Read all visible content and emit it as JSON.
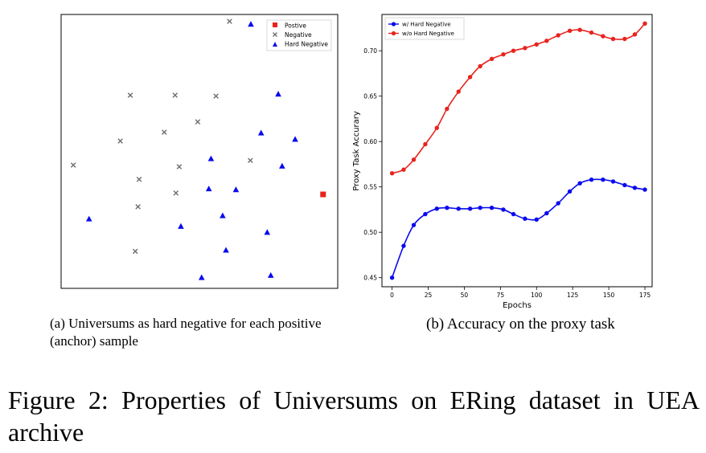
{
  "figure": {
    "caption": "Figure 2: Properties of Universums on ERing dataset in UEA archive"
  },
  "panel_a": {
    "caption": "(a) Universums as hard negative for each positive (anchor) sample",
    "legend": [
      "Postive",
      "Negative",
      "Hard Negative"
    ],
    "colors": {
      "positive": "#e8231e",
      "negative": "#6e6e6e",
      "hard_negative": "#0a0aef"
    }
  },
  "panel_b": {
    "caption": "(b) Accuracy on the proxy task",
    "colors": {
      "hard": "#0a0aef",
      "nohard": "#e8231e"
    }
  },
  "chart_data": [
    {
      "type": "scatter",
      "title": "",
      "xlabel": "",
      "ylabel": "",
      "axes_ticks": false,
      "legend_position": "top-right",
      "xlim": [
        0,
        100
      ],
      "ylim": [
        0,
        100
      ],
      "series": [
        {
          "name": "Postive",
          "marker": "square",
          "points": [
            [
              94.7,
              34.3
            ]
          ]
        },
        {
          "name": "Negative",
          "marker": "x",
          "points": [
            [
              60.9,
              97.5
            ],
            [
              25.0,
              70.5
            ],
            [
              41.2,
              70.5
            ],
            [
              56.0,
              70.2
            ],
            [
              37.3,
              57.0
            ],
            [
              49.4,
              60.8
            ],
            [
              21.4,
              53.8
            ],
            [
              4.4,
              45.0
            ],
            [
              42.7,
              44.4
            ],
            [
              68.4,
              46.7
            ],
            [
              28.2,
              39.8
            ],
            [
              41.5,
              34.8
            ],
            [
              27.8,
              29.8
            ],
            [
              26.8,
              13.5
            ]
          ]
        },
        {
          "name": "Hard Negative",
          "marker": "triangle",
          "points": [
            [
              68.6,
              96.5
            ],
            [
              78.5,
              71.0
            ],
            [
              72.3,
              56.8
            ],
            [
              84.6,
              54.5
            ],
            [
              54.2,
              47.4
            ],
            [
              79.9,
              44.7
            ],
            [
              53.4,
              36.4
            ],
            [
              63.2,
              36.1
            ],
            [
              10.1,
              25.4
            ],
            [
              58.4,
              26.6
            ],
            [
              43.3,
              22.7
            ],
            [
              74.5,
              20.5
            ],
            [
              59.6,
              14.0
            ],
            [
              50.8,
              4.0
            ],
            [
              75.8,
              4.8
            ]
          ]
        }
      ]
    },
    {
      "type": "line",
      "title": "",
      "xlabel": "Epochs",
      "ylabel": "Proxy Task Accurary",
      "xlim": [
        -7,
        180
      ],
      "ylim": [
        0.44,
        0.74
      ],
      "xticks": [
        0,
        25,
        50,
        75,
        100,
        125,
        150,
        175
      ],
      "yticks": [
        0.45,
        0.5,
        0.55,
        0.6,
        0.65,
        0.7
      ],
      "yticklabels": [
        "0.45",
        "0.50",
        "0.55",
        "0.60",
        "0.65",
        "0.70"
      ],
      "legend_position": "top-left",
      "x": [
        0,
        8,
        15,
        23,
        31,
        38,
        46,
        54,
        61,
        69,
        77,
        84,
        92,
        100,
        107,
        115,
        123,
        130,
        138,
        146,
        153,
        161,
        168,
        175
      ],
      "series": [
        {
          "name": "w/ Hard Negative",
          "color_key": "hard",
          "values": [
            0.45,
            0.485,
            0.508,
            0.52,
            0.526,
            0.527,
            0.526,
            0.526,
            0.527,
            0.527,
            0.525,
            0.52,
            0.515,
            0.514,
            0.521,
            0.532,
            0.545,
            0.554,
            0.558,
            0.558,
            0.556,
            0.552,
            0.549,
            0.547
          ]
        },
        {
          "name": "w/o Hard Negative",
          "color_key": "nohard",
          "values": [
            0.565,
            0.569,
            0.58,
            0.597,
            0.615,
            0.636,
            0.655,
            0.671,
            0.683,
            0.691,
            0.696,
            0.7,
            0.703,
            0.707,
            0.711,
            0.717,
            0.722,
            0.723,
            0.72,
            0.716,
            0.713,
            0.713,
            0.718,
            0.73
          ]
        }
      ]
    }
  ]
}
